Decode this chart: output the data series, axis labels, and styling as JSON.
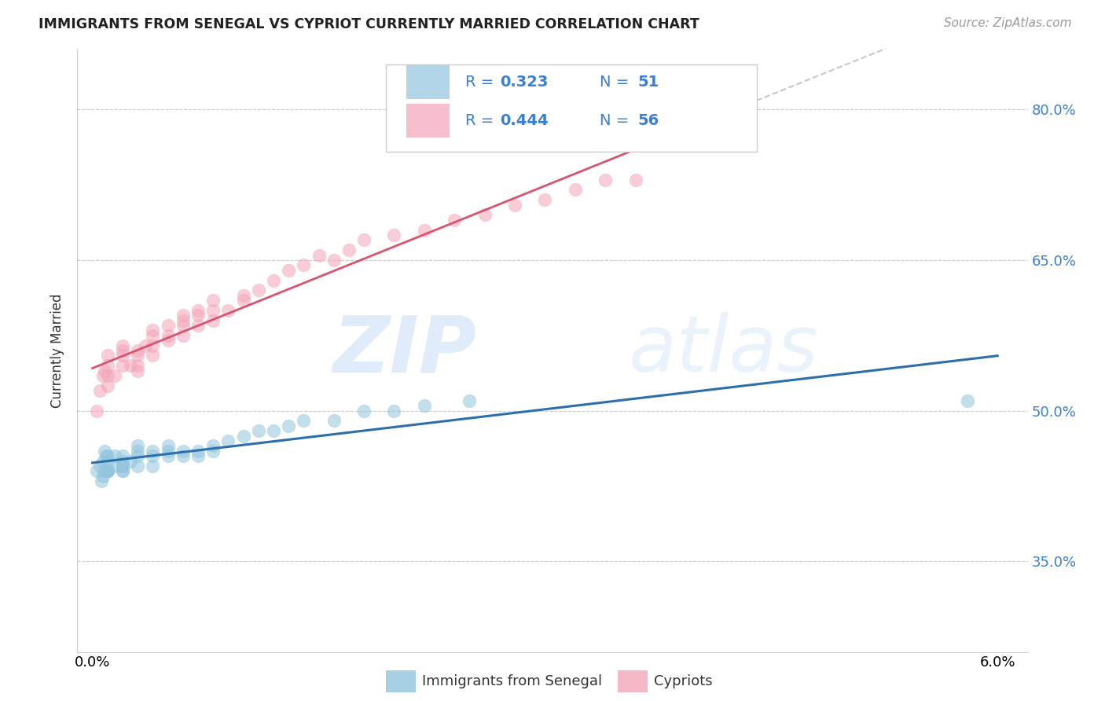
{
  "title": "IMMIGRANTS FROM SENEGAL VS CYPRIOT CURRENTLY MARRIED CORRELATION CHART",
  "source": "Source: ZipAtlas.com",
  "xlabel_blue": "Immigrants from Senegal",
  "xlabel_pink": "Cypriots",
  "ylabel": "Currently Married",
  "xlim": [
    -0.001,
    0.062
  ],
  "ylim": [
    0.26,
    0.86
  ],
  "yticks": [
    0.35,
    0.5,
    0.65,
    0.8
  ],
  "ytick_labels": [
    "35.0%",
    "50.0%",
    "65.0%",
    "80.0%"
  ],
  "xticks": [
    0.0,
    0.01,
    0.02,
    0.03,
    0.04,
    0.05,
    0.06
  ],
  "xtick_labels": [
    "0.0%",
    "",
    "",
    "",
    "",
    "",
    "6.0%"
  ],
  "legend_blue_r": "0.323",
  "legend_blue_n": "51",
  "legend_pink_r": "0.444",
  "legend_pink_n": "56",
  "blue_color": "#92c5de",
  "pink_color": "#f4a5b8",
  "blue_line_color": "#2c6fad",
  "pink_line_color": "#d9546e",
  "dashed_line_color": "#c8c8c8",
  "background_color": "#ffffff",
  "watermark_zip": "ZIP",
  "watermark_atlas": "atlas",
  "blue_scatter_x": [
    0.0003,
    0.0005,
    0.0006,
    0.0007,
    0.0007,
    0.0008,
    0.0008,
    0.0009,
    0.001,
    0.001,
    0.001,
    0.001,
    0.001,
    0.001,
    0.0015,
    0.0015,
    0.002,
    0.002,
    0.002,
    0.002,
    0.002,
    0.002,
    0.0025,
    0.003,
    0.003,
    0.003,
    0.003,
    0.004,
    0.004,
    0.004,
    0.005,
    0.005,
    0.005,
    0.006,
    0.006,
    0.007,
    0.007,
    0.008,
    0.008,
    0.009,
    0.01,
    0.011,
    0.012,
    0.013,
    0.014,
    0.016,
    0.018,
    0.02,
    0.022,
    0.025,
    0.058
  ],
  "blue_scatter_y": [
    0.44,
    0.445,
    0.43,
    0.435,
    0.45,
    0.44,
    0.46,
    0.455,
    0.44,
    0.44,
    0.44,
    0.44,
    0.45,
    0.455,
    0.445,
    0.455,
    0.44,
    0.44,
    0.445,
    0.445,
    0.45,
    0.455,
    0.45,
    0.445,
    0.455,
    0.46,
    0.465,
    0.445,
    0.455,
    0.46,
    0.455,
    0.46,
    0.465,
    0.455,
    0.46,
    0.455,
    0.46,
    0.46,
    0.465,
    0.47,
    0.475,
    0.48,
    0.48,
    0.485,
    0.49,
    0.49,
    0.5,
    0.5,
    0.505,
    0.51,
    0.51
  ],
  "pink_scatter_x": [
    0.0003,
    0.0005,
    0.0007,
    0.0008,
    0.001,
    0.001,
    0.001,
    0.001,
    0.0015,
    0.002,
    0.002,
    0.002,
    0.002,
    0.0025,
    0.003,
    0.003,
    0.003,
    0.003,
    0.0035,
    0.004,
    0.004,
    0.004,
    0.004,
    0.005,
    0.005,
    0.005,
    0.006,
    0.006,
    0.006,
    0.006,
    0.007,
    0.007,
    0.007,
    0.008,
    0.008,
    0.008,
    0.009,
    0.01,
    0.01,
    0.011,
    0.012,
    0.013,
    0.014,
    0.015,
    0.016,
    0.017,
    0.018,
    0.02,
    0.022,
    0.024,
    0.026,
    0.028,
    0.03,
    0.032,
    0.034,
    0.036
  ],
  "pink_scatter_y": [
    0.5,
    0.52,
    0.535,
    0.54,
    0.525,
    0.535,
    0.545,
    0.555,
    0.535,
    0.545,
    0.555,
    0.56,
    0.565,
    0.545,
    0.54,
    0.545,
    0.555,
    0.56,
    0.565,
    0.555,
    0.565,
    0.575,
    0.58,
    0.57,
    0.575,
    0.585,
    0.575,
    0.585,
    0.59,
    0.595,
    0.585,
    0.595,
    0.6,
    0.59,
    0.6,
    0.61,
    0.6,
    0.61,
    0.615,
    0.62,
    0.63,
    0.64,
    0.645,
    0.655,
    0.65,
    0.66,
    0.67,
    0.675,
    0.68,
    0.69,
    0.695,
    0.705,
    0.71,
    0.72,
    0.73,
    0.73
  ]
}
